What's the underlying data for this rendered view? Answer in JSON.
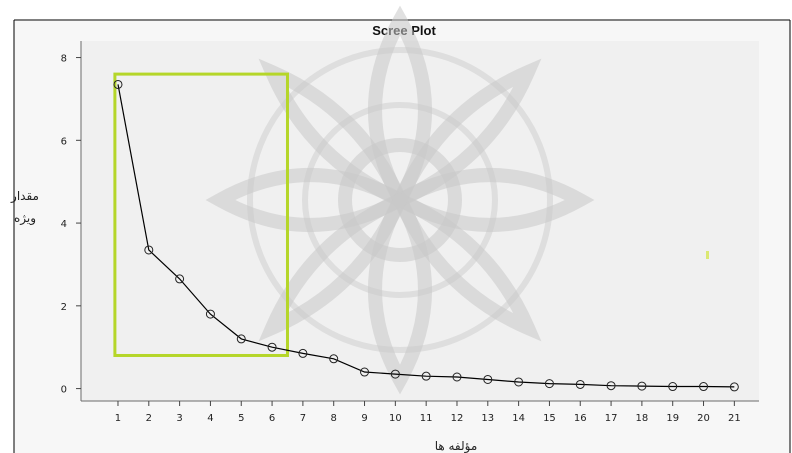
{
  "chart_data": {
    "type": "line",
    "title": "Scree Plot",
    "xlabel": "مؤلفه ها",
    "ylabel_lines": [
      "مقدار",
      "ویژه"
    ],
    "x": [
      1,
      2,
      3,
      4,
      5,
      6,
      7,
      8,
      9,
      10,
      11,
      12,
      13,
      14,
      15,
      16,
      17,
      18,
      19,
      20,
      21
    ],
    "y": [
      7.35,
      3.35,
      2.65,
      1.8,
      1.2,
      1.0,
      0.85,
      0.72,
      0.4,
      0.35,
      0.3,
      0.28,
      0.22,
      0.16,
      0.12,
      0.1,
      0.07,
      0.06,
      0.05,
      0.05,
      0.04
    ],
    "yticks": [
      0,
      2,
      4,
      6,
      8
    ],
    "xticks": [
      1,
      2,
      3,
      4,
      5,
      6,
      7,
      8,
      9,
      10,
      11,
      12,
      13,
      14,
      15,
      16,
      17,
      18,
      19,
      20,
      21
    ],
    "xlim": [
      -0.2,
      21.8
    ],
    "ylim": [
      -0.3,
      8.4
    ],
    "highlight": {
      "x_range": [
        0.9,
        6.5
      ],
      "y_range": [
        0.8,
        7.6
      ],
      "color": "#b5d629"
    },
    "marker": "open-circle",
    "line_color": "#000000",
    "grid": false
  }
}
